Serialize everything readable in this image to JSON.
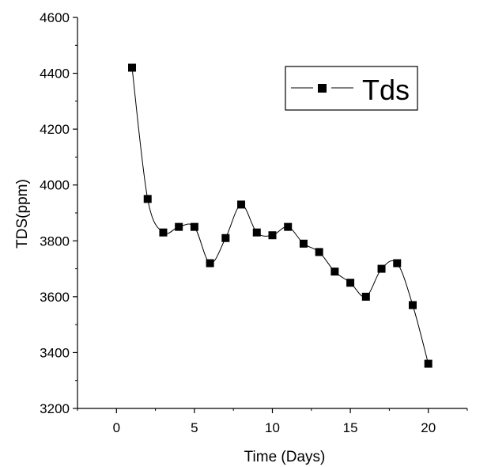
{
  "chart_data": {
    "type": "line",
    "title": "",
    "xlabel": "Time (Days)",
    "ylabel": "TDS(ppm)",
    "xlim": [
      -2.5,
      22.5
    ],
    "ylim": [
      3200,
      4600
    ],
    "xticks": [
      0,
      5,
      10,
      15,
      20
    ],
    "yticks": [
      3200,
      3400,
      3600,
      3800,
      4000,
      4200,
      4400,
      4600
    ],
    "grid": false,
    "legend_position": "top-right",
    "series": [
      {
        "name": "Tds",
        "marker": "square",
        "line_style": "smooth",
        "color": "#000000",
        "x": [
          1,
          2,
          3,
          4,
          5,
          6,
          7,
          8,
          9,
          10,
          11,
          12,
          13,
          14,
          15,
          16,
          17,
          18,
          19,
          20
        ],
        "y": [
          4420,
          3950,
          3830,
          3850,
          3850,
          3720,
          3810,
          3930,
          3830,
          3820,
          3850,
          3790,
          3760,
          3690,
          3650,
          3600,
          3700,
          3720,
          3570,
          3360
        ]
      }
    ]
  }
}
